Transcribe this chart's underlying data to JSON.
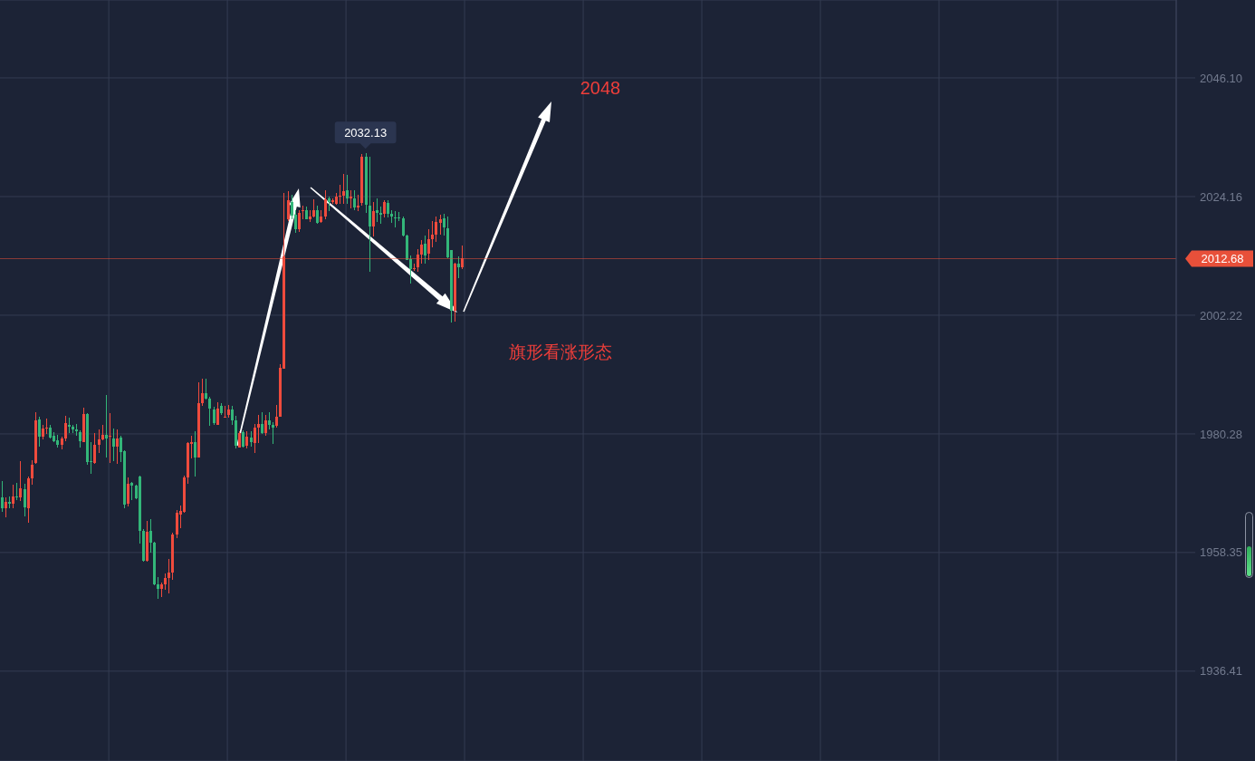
{
  "chart_data": {
    "type": "candlestick",
    "categories": [
      null,
      null,
      null,
      null,
      null,
      null,
      null,
      null,
      null,
      null,
      null,
      null,
      null,
      null,
      null,
      null,
      null,
      null,
      null,
      null,
      null,
      null,
      null,
      null,
      null,
      null,
      null,
      null,
      null,
      null,
      null,
      null,
      null,
      null,
      null,
      null,
      null,
      null,
      null,
      null,
      null,
      null,
      null,
      null,
      null,
      null,
      null,
      null,
      null,
      null,
      null,
      null,
      null,
      null,
      null,
      null,
      null,
      null,
      null,
      null,
      null,
      null,
      null,
      null,
      null,
      null,
      null,
      null,
      null,
      null,
      null,
      null,
      null,
      null,
      null,
      null,
      null,
      null,
      null,
      null,
      null,
      null,
      null,
      null,
      null,
      null,
      null,
      null,
      null,
      null,
      null,
      null,
      null,
      null,
      null,
      null,
      null,
      null,
      null,
      null,
      null,
      null,
      null,
      null,
      null,
      null,
      null,
      null,
      null,
      null,
      null,
      null,
      null,
      null,
      null,
      null,
      null,
      null,
      null,
      null,
      null,
      null,
      null,
      null,
      null,
      null,
      null,
      null,
      null,
      null,
      null,
      null,
      null,
      null,
      null,
      null,
      null,
      null,
      null,
      null,
      null,
      null,
      null,
      null,
      null,
      null,
      null,
      null,
      null,
      null,
      null,
      null,
      null,
      null,
      null,
      null,
      null,
      null,
      null,
      null,
      null,
      null,
      null,
      null,
      null,
      null,
      null,
      null,
      null,
      null,
      null,
      null,
      null,
      null,
      null,
      null,
      null,
      null,
      null,
      null,
      null,
      null,
      null,
      null,
      null,
      null,
      null,
      null,
      null,
      null,
      null,
      null,
      null,
      null,
      null,
      null,
      null,
      null,
      null,
      null,
      null,
      null,
      null,
      null,
      null,
      null,
      null,
      null,
      null,
      null,
      null,
      null,
      null,
      null,
      null,
      null,
      null,
      null,
      null,
      null,
      null,
      null,
      null,
      null,
      null,
      null,
      null,
      null,
      null,
      null,
      null,
      null,
      null,
      null,
      null,
      null,
      null,
      null,
      null,
      null,
      null,
      null,
      null,
      null,
      null,
      null,
      null,
      null,
      null,
      null,
      null,
      null,
      null,
      null,
      null,
      null,
      null,
      null,
      null,
      null,
      null,
      null,
      null,
      null,
      null,
      null,
      null,
      null,
      null,
      null,
      null,
      null,
      null,
      null,
      null,
      null,
      null,
      null,
      null,
      null,
      null,
      null,
      null,
      null,
      null,
      null,
      null,
      null,
      null,
      null,
      null,
      null,
      null,
      null,
      null,
      null,
      null,
      null,
      null,
      null,
      null,
      null,
      null,
      null,
      null,
      null,
      null,
      null,
      null,
      null,
      null,
      null,
      null,
      null,
      null,
      null,
      null
    ],
    "ohlc": [
      [
        1968.6,
        1971.6,
        1965.8,
        1966.6
      ],
      [
        1966.6,
        1968.5,
        1964.9,
        1967.7
      ],
      [
        1967.7,
        1968.7,
        1966.6,
        1967.4
      ],
      [
        1967.3,
        1970.9,
        1966.6,
        1968.7
      ],
      [
        1968.7,
        1971.2,
        1968.1,
        1968.5
      ],
      [
        1968.6,
        1975.3,
        1967.8,
        1970.2
      ],
      [
        1970.1,
        1971.1,
        1965.1,
        1966.7
      ],
      [
        1966.6,
        1972.4,
        1963.8,
        1972.1
      ],
      [
        1972.1,
        1975.4,
        1970.9,
        1974.6
      ],
      [
        1974.9,
        1984.3,
        1974.8,
        1982.8
      ],
      [
        1983.0,
        1983.4,
        1977.9,
        1979.8
      ],
      [
        1979.8,
        1982.0,
        1979.2,
        1981.3
      ],
      [
        1981.3,
        1983.1,
        1980.3,
        1981.5
      ],
      [
        1981.5,
        1982.0,
        1979.4,
        1979.6
      ],
      [
        1980.0,
        1980.6,
        1978.7,
        1979.0
      ],
      [
        1979.1,
        1980.1,
        1977.8,
        1978.3
      ],
      [
        1978.3,
        1979.8,
        1977.4,
        1979.4
      ],
      [
        1979.4,
        1983.6,
        1978.9,
        1982.3
      ],
      [
        1982.0,
        1983.3,
        1980.5,
        1981.6
      ],
      [
        1981.6,
        1982.0,
        1980.5,
        1981.1
      ],
      [
        1981.1,
        1982.1,
        1980.0,
        1980.7
      ],
      [
        1980.6,
        1981.0,
        1977.8,
        1978.9
      ],
      [
        1978.8,
        1985.1,
        1978.7,
        1984.0
      ],
      [
        1984.0,
        1984.1,
        1974.6,
        1975.1
      ],
      [
        1975.3,
        1978.8,
        1972.9,
        1975.1
      ],
      [
        1974.9,
        1980.5,
        1974.8,
        1978.3
      ],
      [
        1978.3,
        1981.1,
        1976.8,
        1979.3
      ],
      [
        1979.3,
        1982.0,
        1979.1,
        1980.1
      ],
      [
        1980.1,
        1987.5,
        1975.9,
        1979.5
      ],
      [
        1979.7,
        1984.1,
        1974.9,
        1980.0
      ],
      [
        1979.4,
        1981.3,
        1975.3,
        1977.9
      ],
      [
        1977.9,
        1981.1,
        1974.8,
        1979.4
      ],
      [
        1979.6,
        1980.0,
        1975.1,
        1976.9
      ],
      [
        1977.1,
        1977.3,
        1966.6,
        1967.2
      ],
      [
        1967.4,
        1972.2,
        1966.9,
        1971.1
      ],
      [
        1971.2,
        1971.4,
        1968.1,
        1970.7
      ],
      [
        1970.7,
        1970.9,
        1968.2,
        1968.4
      ],
      [
        1972.4,
        1972.6,
        1960.0,
        1962.4
      ],
      [
        1962.4,
        1962.7,
        1956.7,
        1956.8
      ],
      [
        1956.8,
        1964.2,
        1956.7,
        1962.2
      ],
      [
        1962.4,
        1964.5,
        1958.3,
        1960.2
      ],
      [
        1960.2,
        1960.4,
        1952.3,
        1952.5
      ],
      [
        1952.5,
        1953.8,
        1949.7,
        1951.6
      ],
      [
        1951.6,
        1952.8,
        1950.1,
        1952.5
      ],
      [
        1952.5,
        1954.4,
        1951.4,
        1953.6
      ],
      [
        1953.6,
        1957.2,
        1950.8,
        1954.7
      ],
      [
        1954.7,
        1962.0,
        1953.3,
        1961.7
      ],
      [
        1961.7,
        1966.2,
        1961.0,
        1965.7
      ],
      [
        1965.4,
        1967.0,
        1962.9,
        1966.0
      ],
      [
        1965.9,
        1972.6,
        1965.7,
        1972.3
      ],
      [
        1972.3,
        1978.8,
        1971.0,
        1978.6
      ],
      [
        1978.4,
        1979.9,
        1975.8,
        1978.8
      ],
      [
        1978.8,
        1980.8,
        1972.4,
        1975.9
      ],
      [
        1975.9,
        1989.8,
        1975.9,
        1986.0
      ],
      [
        1986.0,
        1990.5,
        1985.4,
        1987.8
      ],
      [
        1987.8,
        1990.5,
        1986.6,
        1986.8
      ],
      [
        1986.8,
        1987.1,
        1981.8,
        1985.0
      ],
      [
        1984.8,
        1985.3,
        1982.0,
        1982.3
      ],
      [
        1982.0,
        1986.1,
        1982.0,
        1985.0
      ],
      [
        1985.5,
        1985.9,
        1983.8,
        1984.1
      ],
      [
        1983.3,
        1985.4,
        1983.3,
        1983.5
      ],
      [
        1983.8,
        1985.6,
        1983.3,
        1984.8
      ],
      [
        1984.8,
        1985.4,
        1982.0,
        1982.8
      ],
      [
        1982.8,
        1983.6,
        1977.6,
        1978.1
      ],
      [
        1977.8,
        1980.8,
        1977.7,
        1980.4
      ],
      [
        1980.6,
        1980.9,
        1977.8,
        1977.9
      ],
      [
        1978.1,
        1980.8,
        1977.6,
        1979.8
      ],
      [
        1979.6,
        1980.8,
        1977.9,
        1978.8
      ],
      [
        1978.6,
        1982.1,
        1976.8,
        1981.4
      ],
      [
        1981.4,
        1983.8,
        1978.6,
        1982.1
      ],
      [
        1982.1,
        1984.3,
        1980.3,
        1980.4
      ],
      [
        1980.4,
        1983.8,
        1979.9,
        1982.8
      ],
      [
        1982.8,
        1984.3,
        1981.1,
        1982.0
      ],
      [
        1982.0,
        1982.5,
        1978.4,
        1981.5
      ],
      [
        1981.8,
        1985.6,
        1981.4,
        1983.5
      ],
      [
        1983.5,
        1993.2,
        1983.5,
        1992.5
      ],
      [
        1992.4,
        2024.8,
        1992.4,
        2013.1
      ],
      [
        2020.0,
        2025.1,
        2019.7,
        2023.4
      ],
      [
        2023.1,
        2024.5,
        2020.0,
        2020.6
      ],
      [
        2020.8,
        2021.7,
        2017.5,
        2018.2
      ],
      [
        2018.2,
        2021.7,
        2017.6,
        2021.1
      ],
      [
        2021.4,
        2022.5,
        2020.0,
        2021.7
      ],
      [
        2021.7,
        2022.3,
        2019.9,
        2020.0
      ],
      [
        2019.9,
        2021.7,
        2019.5,
        2020.5
      ],
      [
        2020.4,
        2023.7,
        2020.3,
        2021.7
      ],
      [
        2021.7,
        2022.5,
        2019.1,
        2019.3
      ],
      [
        2019.5,
        2021.7,
        2019.3,
        2020.5
      ],
      [
        2020.5,
        2025.3,
        2020.0,
        2023.7
      ],
      [
        2023.8,
        2024.1,
        2021.5,
        2023.1
      ],
      [
        2023.1,
        2023.8,
        2022.8,
        2023.4
      ],
      [
        2022.8,
        2024.9,
        2022.7,
        2024.2
      ],
      [
        2024.1,
        2026.3,
        2022.8,
        2024.3
      ],
      [
        2024.3,
        2028.3,
        2022.8,
        2025.2
      ],
      [
        2025.3,
        2028.1,
        2022.8,
        2023.8
      ],
      [
        2023.8,
        2025.3,
        2022.0,
        2024.2
      ],
      [
        2023.9,
        2025.3,
        2021.7,
        2022.2
      ],
      [
        2022.2,
        2024.5,
        2021.5,
        2022.5
      ],
      [
        2023.0,
        2032.0,
        2022.5,
        2031.6
      ],
      [
        2031.6,
        2032.13,
        2021.1,
        2022.7
      ],
      [
        2022.5,
        2031.6,
        2010.3,
        2018.6
      ],
      [
        2018.7,
        2023.1,
        2016.7,
        2021.5
      ],
      [
        2021.7,
        2023.9,
        2019.5,
        2021.1
      ],
      [
        2021.1,
        2022.3,
        2019.1,
        2020.8
      ],
      [
        2021.0,
        2023.4,
        2020.3,
        2023.1
      ],
      [
        2023.0,
        2023.4,
        2020.3,
        2020.9
      ],
      [
        2021.0,
        2021.7,
        2019.3,
        2020.5
      ],
      [
        2020.3,
        2021.4,
        2018.5,
        2020.1
      ],
      [
        2020.3,
        2021.3,
        2019.7,
        2020.1
      ],
      [
        2020.1,
        2020.4,
        2016.8,
        2017.0
      ],
      [
        2017.0,
        2017.1,
        2012.4,
        2012.5
      ],
      [
        2012.6,
        2013.3,
        2008.0,
        2010.8
      ],
      [
        2010.8,
        2011.7,
        2010.5,
        2011.0
      ],
      [
        2011.1,
        2014.4,
        2010.3,
        2013.5
      ],
      [
        2013.5,
        2016.1,
        2011.7,
        2015.3
      ],
      [
        2015.5,
        2017.0,
        2011.8,
        2013.3
      ],
      [
        2013.6,
        2018.1,
        2012.5,
        2016.3
      ],
      [
        2016.3,
        2019.6,
        2014.7,
        2017.1
      ],
      [
        2017.1,
        2020.5,
        2015.7,
        2019.5
      ],
      [
        2019.3,
        2020.8,
        2017.2,
        2019.9
      ],
      [
        2020.1,
        2020.9,
        2017.0,
        2018.5
      ],
      [
        2018.3,
        2020.4,
        2012.8,
        2012.9
      ],
      [
        2014.2,
        2014.2,
        2000.9,
        2003.0
      ],
      [
        2003.0,
        2011.9,
        2001.1,
        2011.8
      ],
      [
        2011.8,
        2013.1,
        2009.0,
        2011.1
      ],
      [
        2011.1,
        2015.1,
        2010.8,
        2012.68
      ],
      null,
      null,
      null,
      null,
      null,
      null,
      null,
      null,
      null,
      null,
      null,
      null,
      null,
      null,
      null,
      null,
      null,
      null,
      null,
      null,
      null,
      null,
      null,
      null,
      null,
      null,
      null,
      null,
      null,
      null,
      null,
      null,
      null,
      null,
      null,
      null,
      null,
      null,
      null,
      null,
      null,
      null,
      null,
      null,
      null,
      null,
      null,
      null,
      null,
      null,
      null,
      null,
      null,
      null,
      null,
      null,
      null,
      null,
      null,
      null,
      null,
      null,
      null,
      null,
      null,
      null,
      null,
      null,
      null,
      null,
      null,
      null,
      null,
      null,
      null,
      null,
      null,
      null,
      null,
      null,
      null,
      null,
      null,
      null,
      null,
      null,
      null,
      null,
      null,
      null,
      null,
      null,
      null,
      null,
      null,
      null,
      null,
      null,
      null,
      null,
      null,
      null,
      null,
      null,
      null,
      null,
      null,
      null,
      null,
      null,
      null,
      null,
      null,
      null,
      null,
      null,
      null,
      null,
      null,
      null,
      null,
      null,
      null,
      null,
      null,
      null,
      null,
      null,
      null,
      null,
      null,
      null,
      null,
      null,
      null,
      null,
      null,
      null,
      null,
      null,
      null,
      null,
      null,
      null,
      null,
      null,
      null,
      null,
      null,
      null,
      null,
      null,
      null,
      null,
      null,
      null,
      null,
      null,
      null,
      null,
      null,
      null,
      null,
      null,
      null,
      null,
      null,
      null,
      null,
      null,
      null,
      null,
      null,
      null,
      null,
      null,
      null,
      null,
      null,
      null,
      null,
      null,
      null,
      null,
      null,
      null,
      null,
      null,
      null,
      null,
      null,
      null
    ],
    "colors": [
      "#33b679",
      "#ef4b3d",
      "#33b679",
      "#ef4b3d",
      "#33b679",
      "#ef4b3d",
      "#33b679",
      "#ef4b3d",
      "#ef4b3d",
      "#ef4b3d",
      "#33b679",
      "#ef4b3d",
      "#ef4b3d",
      "#33b679",
      "#33b679",
      "#33b679",
      "#ef4b3d",
      "#ef4b3d",
      "#33b679",
      "#33b679",
      "#33b679",
      "#33b679",
      "#ef4b3d",
      "#33b679",
      "#33b679",
      "#ef4b3d",
      "#ef4b3d",
      "#ef4b3d",
      "#33b679",
      "#ef4b3d",
      "#33b679",
      "#ef4b3d",
      "#33b679",
      "#33b679",
      "#ef4b3d",
      "#33b679",
      "#33b679",
      "#33b679",
      "#33b679",
      "#ef4b3d",
      "#33b679",
      "#33b679",
      "#33b679",
      "#ef4b3d",
      "#ef4b3d",
      "#ef4b3d",
      "#ef4b3d",
      "#ef4b3d",
      "#ef4b3d",
      "#ef4b3d",
      "#ef4b3d",
      "#ef4b3d",
      "#33b679",
      "#ef4b3d",
      "#ef4b3d",
      "#33b679",
      "#33b679",
      "#33b679",
      "#ef4b3d",
      "#33b679",
      "#ef4b3d",
      "#ef4b3d",
      "#33b679",
      "#33b679",
      "#ef4b3d",
      "#33b679",
      "#ef4b3d",
      "#33b679",
      "#ef4b3d",
      "#ef4b3d",
      "#33b679",
      "#ef4b3d",
      "#33b679",
      "#33b679",
      "#ef4b3d",
      "#ef4b3d",
      "#ef4b3d",
      "#ef4b3d",
      "#33b679",
      "#33b679",
      "#ef4b3d",
      "#ef4b3d",
      "#33b679",
      "#ef4b3d",
      "#ef4b3d",
      "#33b679",
      "#ef4b3d",
      "#ef4b3d",
      "#33b679",
      "#ef4b3d",
      "#ef4b3d",
      "#ef4b3d",
      "#ef4b3d",
      "#33b679",
      "#ef4b3d",
      "#33b679",
      "#ef4b3d",
      "#ef4b3d",
      "#33b679",
      "#33b679",
      "#ef4b3d",
      "#33b679",
      "#33b679",
      "#ef4b3d",
      "#33b679",
      "#33b679",
      "#33b679",
      "#33b679",
      "#33b679",
      "#33b679",
      "#33b679",
      "#ef4b3d",
      "#ef4b3d",
      "#ef4b3d",
      "#33b679",
      "#ef4b3d",
      "#ef4b3d",
      "#ef4b3d",
      "#ef4b3d",
      "#33b679",
      "#33b679",
      "#33b679",
      "#ef4b3d",
      "#33b679",
      "#ef4b3d",
      null,
      null,
      null,
      null,
      null,
      null,
      null,
      null,
      null,
      null,
      null,
      null,
      null,
      null,
      null,
      null,
      null,
      null,
      null,
      null,
      null,
      null,
      null,
      null,
      null,
      null,
      null,
      null,
      null,
      null,
      null,
      null,
      null,
      null,
      null,
      null,
      null,
      null,
      null,
      null,
      null,
      null,
      null,
      null,
      null,
      null,
      null,
      null,
      null,
      null,
      null,
      null,
      null,
      null,
      null,
      null,
      null,
      null,
      null,
      null,
      null,
      null,
      null,
      null,
      null,
      null,
      null,
      null,
      null,
      null,
      null,
      null,
      null,
      null,
      null,
      null,
      null,
      null,
      null,
      null,
      null,
      null,
      null,
      null,
      null,
      null,
      null,
      null,
      null,
      null,
      null,
      null,
      null,
      null,
      null,
      null,
      null,
      null,
      null,
      null,
      null,
      null,
      null,
      null,
      null,
      null,
      null,
      null,
      null,
      null,
      null,
      null,
      null,
      null,
      null,
      null,
      null,
      null,
      null,
      null,
      null,
      null,
      null,
      null,
      null,
      null,
      null,
      null,
      null,
      null,
      null,
      null,
      null,
      null,
      null,
      null,
      null,
      null,
      null,
      null,
      null,
      null,
      null,
      null,
      null,
      null,
      null,
      null,
      null,
      null,
      null,
      null,
      null,
      null,
      null,
      null,
      null,
      null,
      null,
      null,
      null,
      null,
      null,
      null,
      null,
      null,
      null,
      null,
      null,
      null,
      null,
      null,
      null,
      null,
      null,
      null,
      null,
      null,
      null,
      null,
      null,
      null,
      null,
      null,
      null,
      null,
      null,
      null,
      null,
      null,
      null,
      null
    ],
    "ylim": [
      1919.8,
      2060.5
    ],
    "yticks": [
      1936.41,
      1958.35,
      1980.28,
      2002.22,
      2024.16,
      {
        "value": 2046.1,
        "label": "2046.10"
      }
    ],
    "tick_labels": "y",
    "grid": true,
    "ref_lines": [
      {
        "axis": "y",
        "value": 2012.68,
        "label": "2012.68",
        "color": "#e8503a"
      }
    ],
    "annotations": [
      {
        "text": "2032.13",
        "y": 2032.13
      },
      "2048",
      "旗形看涨形态"
    ]
  }
}
